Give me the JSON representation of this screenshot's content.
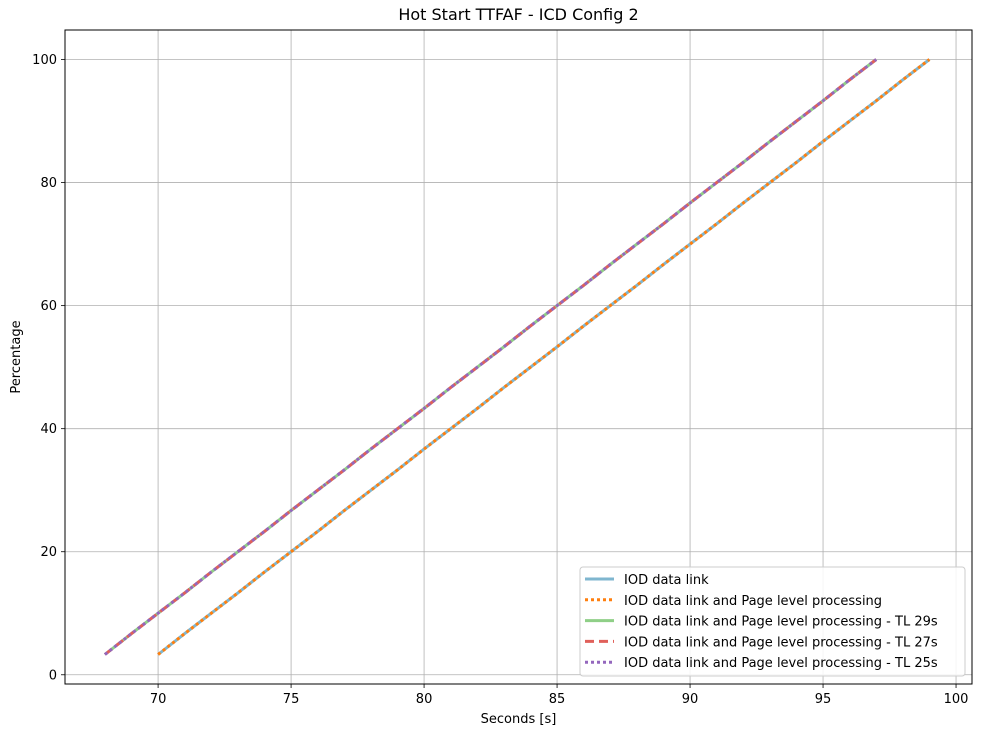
{
  "chart_data": {
    "type": "line",
    "title": "Hot Start TTFAF - ICD Config 2",
    "xlabel": "Seconds [s]",
    "ylabel": "Percentage",
    "xlim": [
      66.5,
      100.6
    ],
    "ylim": [
      -1.5,
      104.8
    ],
    "xticks": [
      70,
      75,
      80,
      85,
      90,
      95,
      100
    ],
    "yticks": [
      0,
      20,
      40,
      60,
      80,
      100
    ],
    "grid": true,
    "legend_position": "lower-right",
    "series": [
      {
        "name": "IOD data link",
        "color": "#7fb6cf",
        "style": "solid",
        "x": [
          70,
          71,
          72,
          73,
          74,
          75,
          76,
          77,
          78,
          79,
          80,
          81,
          82,
          83,
          84,
          85,
          86,
          87,
          88,
          89,
          90,
          91,
          92,
          93,
          94,
          95,
          96,
          97,
          98,
          99
        ],
        "y": [
          3.3,
          6.7,
          10.0,
          13.3,
          16.7,
          20.0,
          23.3,
          26.7,
          30.0,
          33.3,
          36.7,
          40.0,
          43.3,
          46.7,
          50.0,
          53.3,
          56.7,
          60.0,
          63.3,
          66.7,
          70.0,
          73.3,
          76.7,
          80.0,
          83.3,
          86.7,
          90.0,
          93.3,
          96.7,
          100.0
        ]
      },
      {
        "name": "IOD data link and Page level processing",
        "color": "#ff7f0e",
        "style": "dotted",
        "x": [
          70,
          71,
          72,
          73,
          74,
          75,
          76,
          77,
          78,
          79,
          80,
          81,
          82,
          83,
          84,
          85,
          86,
          87,
          88,
          89,
          90,
          91,
          92,
          93,
          94,
          95,
          96,
          97,
          98,
          99
        ],
        "y": [
          3.3,
          6.7,
          10.0,
          13.3,
          16.7,
          20.0,
          23.3,
          26.7,
          30.0,
          33.3,
          36.7,
          40.0,
          43.3,
          46.7,
          50.0,
          53.3,
          56.7,
          60.0,
          63.3,
          66.7,
          70.0,
          73.3,
          76.7,
          80.0,
          83.3,
          86.7,
          90.0,
          93.3,
          96.7,
          100.0
        ]
      },
      {
        "name": "IOD data link and Page level processing - TL 29s",
        "color": "#8fcf87",
        "style": "solid",
        "x": [
          68,
          69,
          70,
          71,
          72,
          73,
          74,
          75,
          76,
          77,
          78,
          79,
          80,
          81,
          82,
          83,
          84,
          85,
          86,
          87,
          88,
          89,
          90,
          91,
          92,
          93,
          94,
          95,
          96,
          97
        ],
        "y": [
          3.3,
          6.7,
          10.0,
          13.3,
          16.7,
          20.0,
          23.3,
          26.7,
          30.0,
          33.3,
          36.7,
          40.0,
          43.3,
          46.7,
          50.0,
          53.3,
          56.7,
          60.0,
          63.3,
          66.7,
          70.0,
          73.3,
          76.7,
          80.0,
          83.3,
          86.7,
          90.0,
          93.3,
          96.7,
          100.0
        ]
      },
      {
        "name": "IOD data link and Page level processing - TL 27s",
        "color": "#e0605a",
        "style": "dashed",
        "x": [
          68,
          69,
          70,
          71,
          72,
          73,
          74,
          75,
          76,
          77,
          78,
          79,
          80,
          81,
          82,
          83,
          84,
          85,
          86,
          87,
          88,
          89,
          90,
          91,
          92,
          93,
          94,
          95,
          96,
          97
        ],
        "y": [
          3.3,
          6.7,
          10.0,
          13.3,
          16.7,
          20.0,
          23.3,
          26.7,
          30.0,
          33.3,
          36.7,
          40.0,
          43.3,
          46.7,
          50.0,
          53.3,
          56.7,
          60.0,
          63.3,
          66.7,
          70.0,
          73.3,
          76.7,
          80.0,
          83.3,
          86.7,
          90.0,
          93.3,
          96.7,
          100.0
        ]
      },
      {
        "name": "IOD data link and Page level processing - TL 25s",
        "color": "#9467bd",
        "style": "dotted",
        "x": [
          68,
          69,
          70,
          71,
          72,
          73,
          74,
          75,
          76,
          77,
          78,
          79,
          80,
          81,
          82,
          83,
          84,
          85,
          86,
          87,
          88,
          89,
          90,
          91,
          92,
          93,
          94,
          95,
          96,
          97
        ],
        "y": [
          3.3,
          6.7,
          10.0,
          13.3,
          16.7,
          20.0,
          23.3,
          26.7,
          30.0,
          33.3,
          36.7,
          40.0,
          43.3,
          46.7,
          50.0,
          53.3,
          56.7,
          60.0,
          63.3,
          66.7,
          70.0,
          73.3,
          76.7,
          80.0,
          83.3,
          86.7,
          90.0,
          93.3,
          96.7,
          100.0
        ]
      }
    ]
  }
}
